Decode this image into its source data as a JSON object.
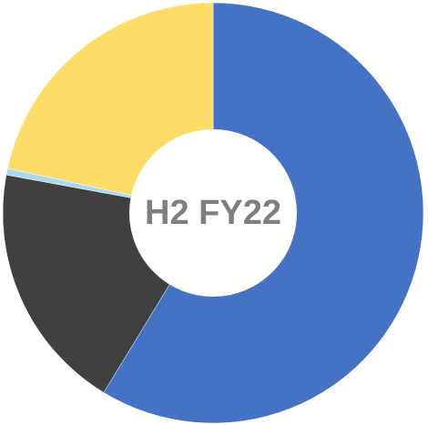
{
  "chart_data": {
    "type": "donut",
    "title": "H2 FY22",
    "values": [
      58.7,
      19.2,
      0.5,
      21.6
    ],
    "colors": [
      "#4472c4",
      "#404040",
      "#a9d8f0",
      "#fcdc64"
    ]
  }
}
